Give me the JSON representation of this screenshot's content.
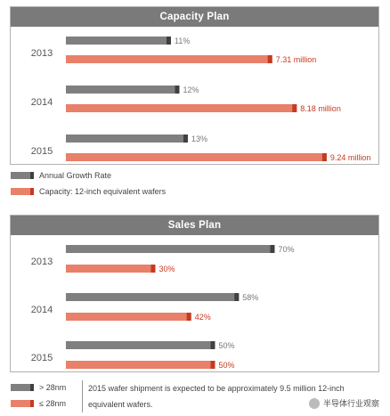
{
  "chart_data": [
    {
      "type": "bar",
      "title": "Capacity Plan",
      "categories": [
        "2013",
        "2014",
        "2015"
      ],
      "series": [
        {
          "name": "Annual Growth Rate",
          "values": [
            11,
            12,
            13
          ],
          "labels": [
            "11%",
            "12%",
            "13%"
          ],
          "color": "#7f7f7f"
        },
        {
          "name": "Capacity: 12-inch equivalent wafers",
          "values": [
            7.31,
            8.18,
            9.24
          ],
          "labels": [
            "7.31 million",
            "8.18 million",
            "9.24 million"
          ],
          "color": "#e8806a"
        }
      ]
    },
    {
      "type": "bar",
      "title": "Sales Plan",
      "categories": [
        "2013",
        "2014",
        "2015"
      ],
      "series": [
        {
          "name": "> 28nm",
          "values": [
            70,
            58,
            50
          ],
          "labels": [
            "70%",
            "58%",
            "50%"
          ],
          "color": "#7f7f7f"
        },
        {
          "name": "≤ 28nm",
          "values": [
            30,
            42,
            50
          ],
          "labels": [
            "30%",
            "42%",
            "50%"
          ],
          "color": "#e8806a"
        }
      ]
    }
  ],
  "capacity_legend": [
    "Annual Growth Rate",
    "Capacity: 12-inch equivalent wafers"
  ],
  "sales_legend": [
    "> 28nm",
    "≤ 28nm"
  ],
  "note": "2015 wafer shipment is expected to be approximately 9.5 million 12-inch equivalent wafers.",
  "watermark": "半导体行业观察",
  "colors": {
    "gray": "#7f7f7f",
    "gray_dark": "#404040",
    "orange": "#e8806a",
    "orange_dark": "#c63a20",
    "header": "#7a7a7a",
    "year_text": "#555555"
  }
}
